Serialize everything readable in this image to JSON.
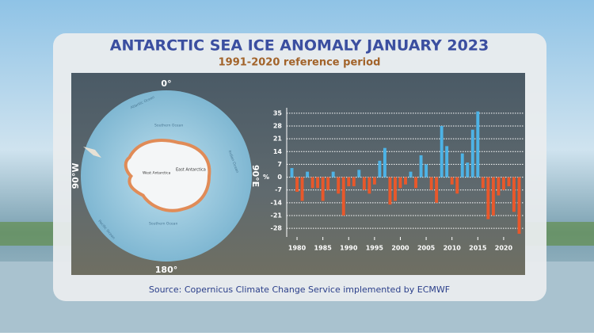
{
  "chart_data": {
    "type": "bar",
    "title": "ANTARCTIC SEA ICE ANOMALY JANUARY 2023",
    "subtitle": "1991-2020 reference period",
    "y_label": "%",
    "x": [
      1979,
      1980,
      1981,
      1982,
      1983,
      1984,
      1985,
      1986,
      1987,
      1988,
      1989,
      1990,
      1991,
      1992,
      1993,
      1994,
      1995,
      1996,
      1997,
      1998,
      1999,
      2000,
      2001,
      2002,
      2003,
      2004,
      2005,
      2006,
      2007,
      2008,
      2009,
      2010,
      2011,
      2012,
      2013,
      2014,
      2015,
      2016,
      2017,
      2018,
      2019,
      2020,
      2021,
      2022,
      2023
    ],
    "values": [
      5,
      -8,
      -13,
      3,
      -6,
      -6,
      -13,
      -7,
      3,
      -9,
      -21,
      -5,
      -5,
      4,
      -7,
      -9,
      -4,
      9,
      16,
      -15,
      -13,
      -6,
      -4,
      3,
      -6,
      12,
      7,
      -7,
      -14,
      28,
      17,
      -4,
      -9,
      13,
      8,
      26,
      36,
      -6,
      -23,
      -21,
      -10,
      -7,
      -5,
      -19,
      -31
    ],
    "positive_color": "#4db3e6",
    "negative_color": "#e8582b",
    "xlim": [
      1978,
      2024
    ],
    "xticks": [
      1980,
      1985,
      1990,
      1995,
      2000,
      2005,
      2010,
      2015,
      2020
    ],
    "ylim": [
      -31,
      38
    ],
    "yticks": [
      35,
      28,
      21,
      14,
      7,
      0,
      -7,
      -14,
      -21,
      -28
    ],
    "grid": true
  },
  "map": {
    "north": "0°",
    "east": "90°E",
    "south": "180°",
    "west": "90°W",
    "labels": [
      "Atlantic Ocean",
      "Southern Ocean",
      "Indian Ocean",
      "Pacific Ocean",
      "Southern Ocean",
      "West Antarctica",
      "East Antarctica"
    ]
  },
  "source": "Source: Copernicus Climate Change Service implemented by ECMWF"
}
